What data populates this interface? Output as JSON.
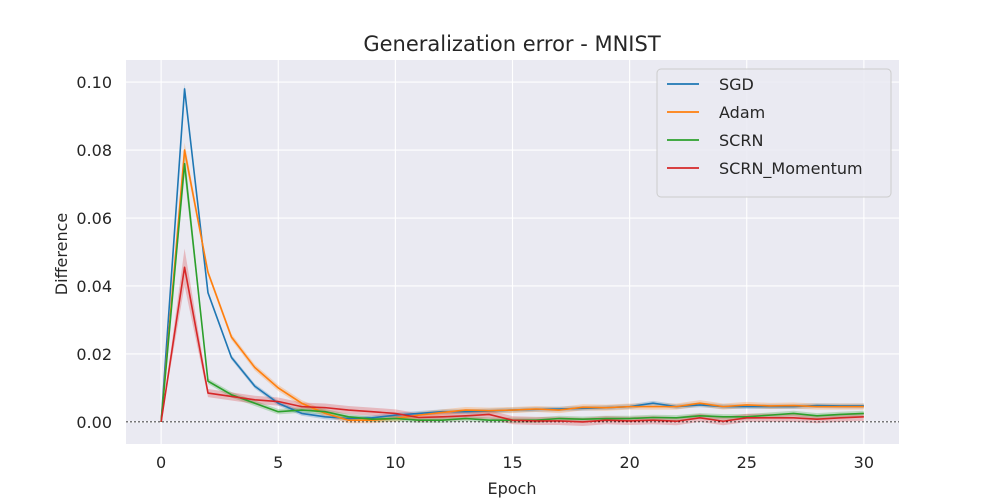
{
  "chart_data": {
    "type": "line",
    "title": "Generalization error - MNIST",
    "xlabel": "Epoch",
    "ylabel": "Difference",
    "xlim": [
      -1.5,
      31.5
    ],
    "ylim": [
      -0.0065,
      0.1065
    ],
    "xticks": [
      0,
      5,
      10,
      15,
      20,
      25,
      30
    ],
    "yticks": [
      0.0,
      0.02,
      0.04,
      0.06,
      0.08,
      0.1
    ],
    "ytick_labels": [
      "0.00",
      "0.02",
      "0.04",
      "0.06",
      "0.08",
      "0.10"
    ],
    "reference_line": 0.0,
    "grid": true,
    "legend_position": "top-right",
    "background_color": "#eaeaf2",
    "x": [
      0,
      1,
      2,
      3,
      4,
      5,
      6,
      7,
      8,
      9,
      10,
      11,
      12,
      13,
      14,
      15,
      16,
      17,
      18,
      19,
      20,
      21,
      22,
      23,
      24,
      25,
      26,
      27,
      28,
      29,
      30
    ],
    "series": [
      {
        "name": "SGD",
        "color": "#1f77b4",
        "values": [
          0.0,
          0.098,
          0.038,
          0.019,
          0.0105,
          0.0055,
          0.0025,
          0.0015,
          0.001,
          0.0012,
          0.002,
          0.0025,
          0.003,
          0.003,
          0.0032,
          0.0035,
          0.0037,
          0.0038,
          0.004,
          0.0042,
          0.0045,
          0.0055,
          0.0045,
          0.005,
          0.0045,
          0.0045,
          0.0045,
          0.0045,
          0.0048,
          0.0047,
          0.0047
        ],
        "band": 0.0007
      },
      {
        "name": "Adam",
        "color": "#ff7f0e",
        "values": [
          0.0,
          0.08,
          0.044,
          0.025,
          0.016,
          0.01,
          0.0055,
          0.0025,
          0.0005,
          0.0005,
          0.001,
          0.002,
          0.0028,
          0.0035,
          0.0033,
          0.0035,
          0.0038,
          0.0035,
          0.0043,
          0.0042,
          0.0045,
          0.0045,
          0.0045,
          0.0055,
          0.0045,
          0.005,
          0.0047,
          0.0048,
          0.0045,
          0.0045,
          0.0045
        ],
        "band": 0.0009
      },
      {
        "name": "SCRN",
        "color": "#2ca02c",
        "values": [
          0.0,
          0.076,
          0.012,
          0.008,
          0.0055,
          0.003,
          0.0035,
          0.003,
          0.0015,
          0.0008,
          0.001,
          0.0005,
          0.0005,
          0.001,
          0.0005,
          0.0005,
          0.0005,
          0.001,
          0.0008,
          0.001,
          0.001,
          0.0013,
          0.0012,
          0.0018,
          0.0015,
          0.0015,
          0.002,
          0.0025,
          0.0018,
          0.0022,
          0.0025
        ],
        "band": 0.0008
      },
      {
        "name": "SCRN_Momentum",
        "color": "#d62728",
        "values": [
          0.0,
          0.0455,
          0.0085,
          0.0075,
          0.0065,
          0.006,
          0.0045,
          0.0042,
          0.0035,
          0.003,
          0.0025,
          0.0013,
          0.0015,
          0.0018,
          0.0022,
          0.0005,
          0.0003,
          0.0003,
          0.0,
          0.0005,
          0.0003,
          0.0005,
          0.0002,
          0.0012,
          0.0002,
          0.0012,
          0.0012,
          0.0012,
          0.0008,
          0.0012,
          0.0015
        ],
        "band": 0.0012
      }
    ],
    "peak_bands": {
      "SGD": 0.0015,
      "Adam": 0.0022,
      "SCRN": 0.0035,
      "SCRN_Momentum": 0.0055
    }
  }
}
